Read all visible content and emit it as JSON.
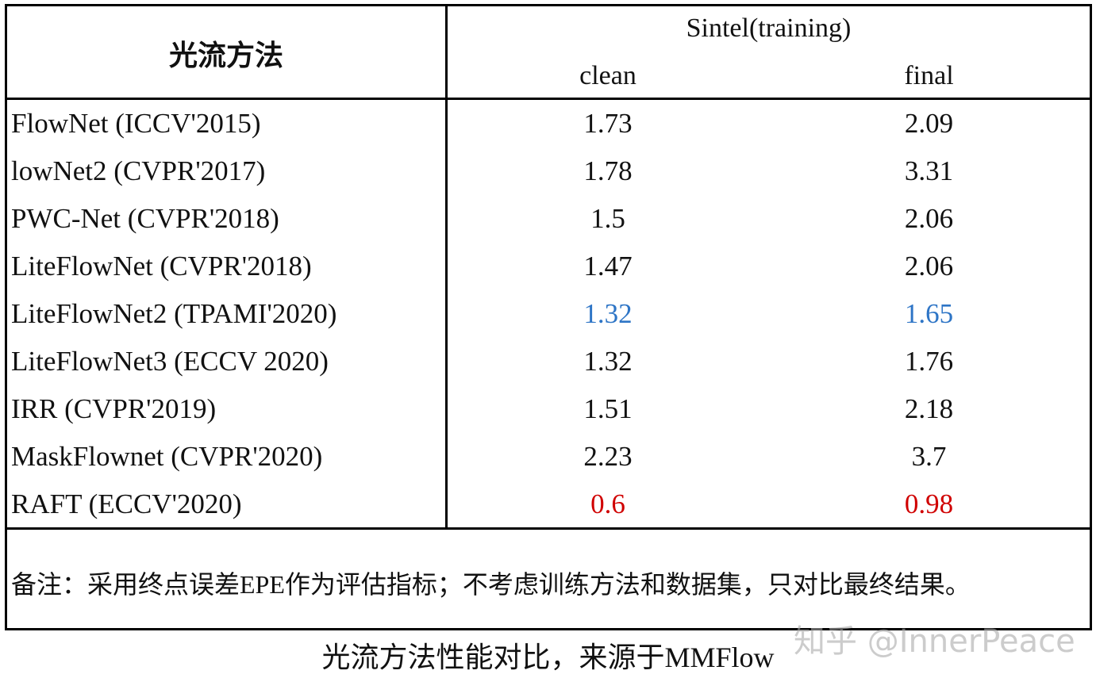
{
  "header": {
    "method": "光流方法",
    "group": "Sintel(training)",
    "columns": [
      "clean",
      "final"
    ]
  },
  "table": {
    "rows": [
      {
        "method": "FlowNet (ICCV'2015)",
        "clean": "1.73",
        "final": "2.09"
      },
      {
        "method": "lowNet2 (CVPR'2017)",
        "clean": "1.78",
        "final": "3.31"
      },
      {
        "method": "PWC-Net (CVPR'2018)",
        "clean": "1.5",
        "final": "2.06"
      },
      {
        "method": "LiteFlowNet (CVPR'2018)",
        "clean": "1.47",
        "final": "2.06"
      },
      {
        "method": "LiteFlowNet2 (TPAMI'2020)",
        "clean": "1.32",
        "final": "1.65",
        "color": "#2e75c6"
      },
      {
        "method": "LiteFlowNet3 (ECCV 2020)",
        "clean": "1.32",
        "final": "1.76"
      },
      {
        "method": "IRR (CVPR'2019)",
        "clean": "1.51",
        "final": "2.18"
      },
      {
        "method": "MaskFlownet (CVPR'2020)",
        "clean": "2.23",
        "final": "3.7"
      },
      {
        "method": "RAFT (ECCV'2020)",
        "clean": "0.6",
        "final": "0.98",
        "color": "#d00000"
      }
    ]
  },
  "note": "备注：采用终点误差EPE作为评估指标；不考虑训练方法和数据集，只对比最终结果。",
  "watermark": "知乎 @InnerPeace",
  "caption": "光流方法性能对比，来源于MMFlow"
}
